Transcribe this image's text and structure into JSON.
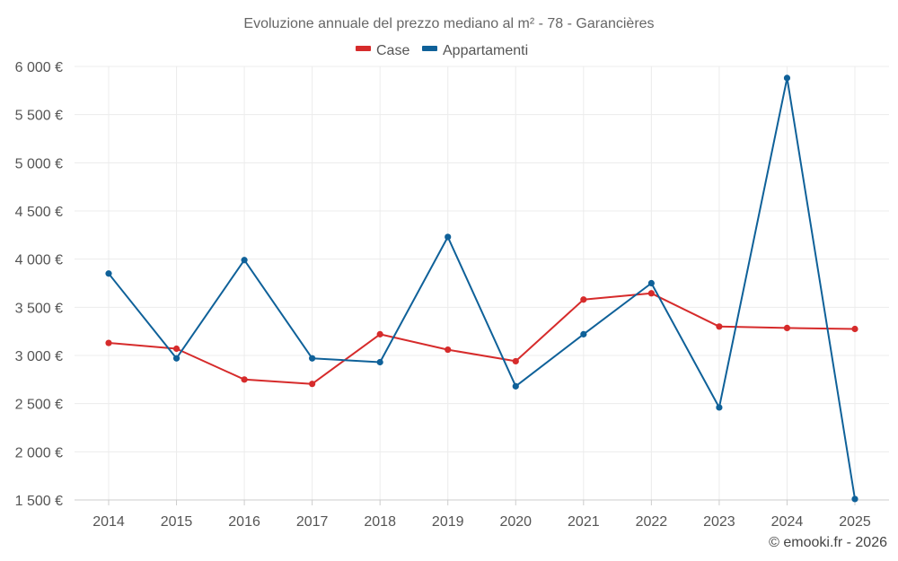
{
  "chart_data": {
    "type": "line",
    "title": "Evoluzione annuale del prezzo mediano al m² - 78 - Garancières",
    "categories": [
      "2014",
      "2015",
      "2016",
      "2017",
      "2018",
      "2019",
      "2020",
      "2021",
      "2022",
      "2023",
      "2024",
      "2025"
    ],
    "y_ticks": [
      1500,
      2000,
      2500,
      3000,
      3500,
      4000,
      4500,
      5000,
      5500,
      6000
    ],
    "y_tick_labels": [
      "1 500 €",
      "2 000 €",
      "2 500 €",
      "3 000 €",
      "3 500 €",
      "4 000 €",
      "4 500 €",
      "5 000 €",
      "5 500 €",
      "6 000 €"
    ],
    "ylim": [
      1500,
      6000
    ],
    "grid": true,
    "legend_position": "top-center",
    "series": [
      {
        "name": "Case",
        "color": "#d62b2b",
        "values": [
          3130,
          3070,
          2750,
          2705,
          3220,
          3060,
          2940,
          3580,
          3645,
          3300,
          3285,
          3275
        ]
      },
      {
        "name": "Appartamenti",
        "color": "#0f6199",
        "values": [
          3850,
          2970,
          3990,
          2970,
          2930,
          4230,
          2680,
          3220,
          3750,
          2460,
          5880,
          1510
        ]
      }
    ],
    "credit": "© emooki.fr - 2026"
  }
}
